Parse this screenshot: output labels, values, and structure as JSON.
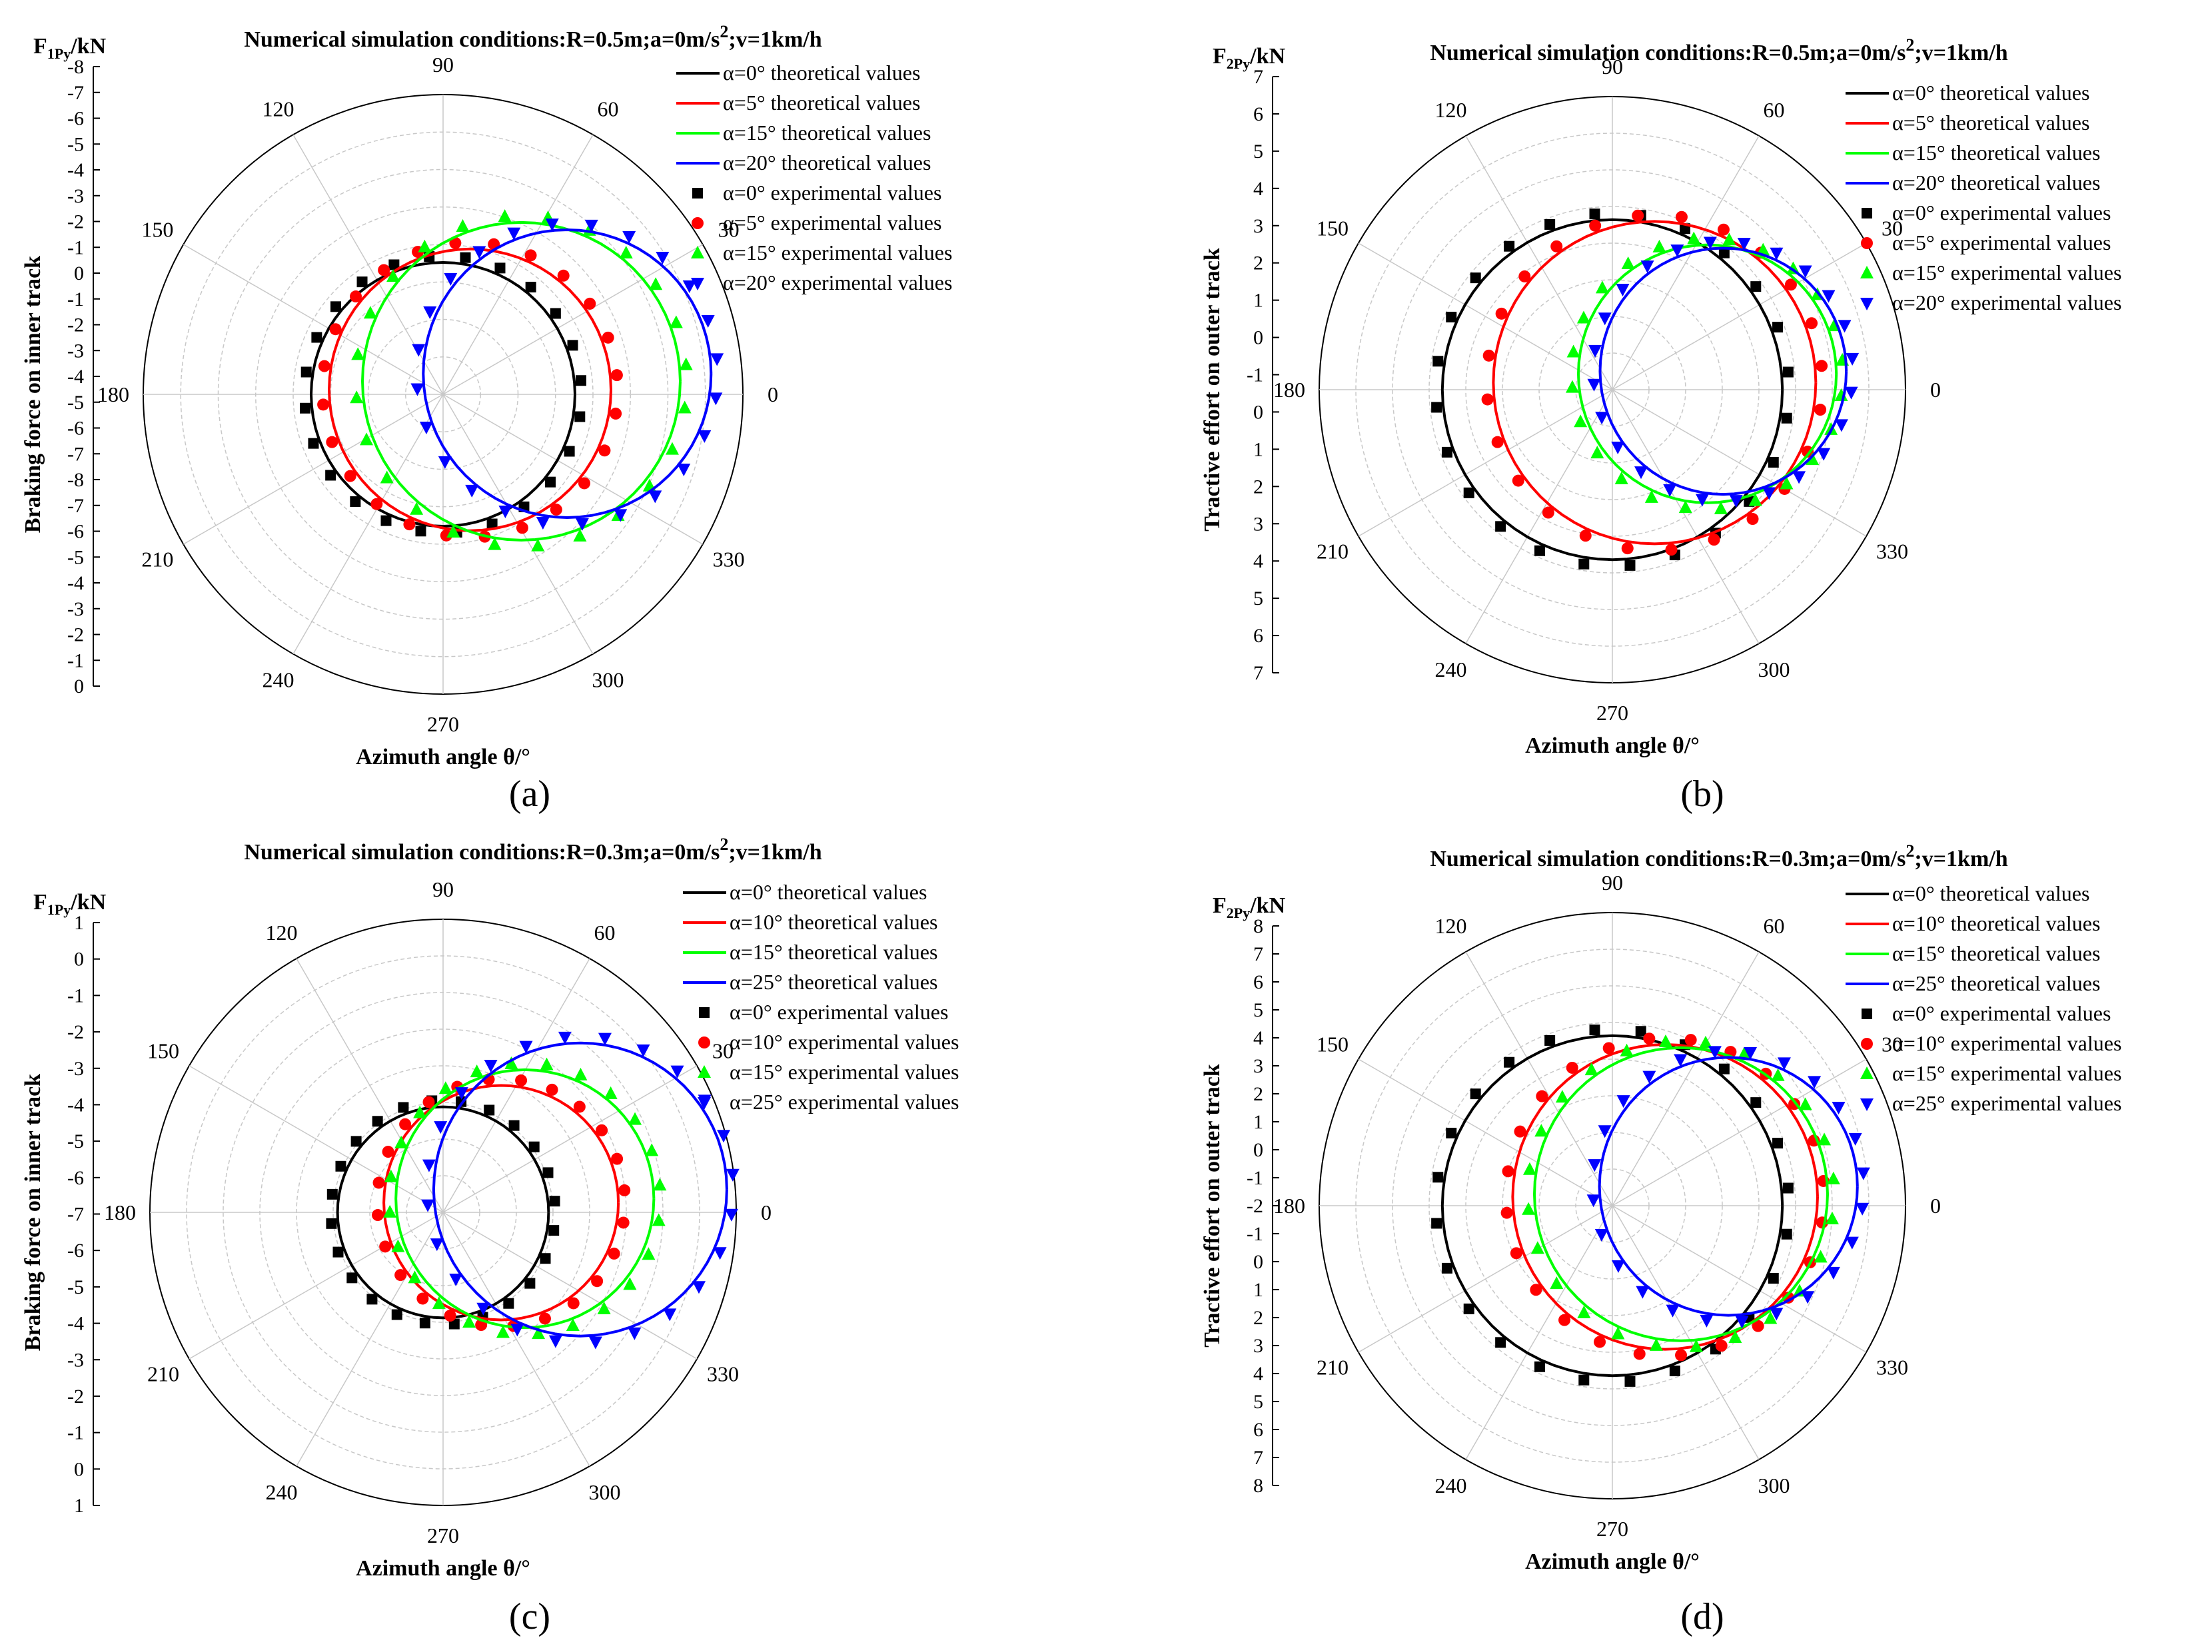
{
  "colors": {
    "black": "#000000",
    "red": "#ff0000",
    "green": "#00ff00",
    "blue": "#0000ff"
  },
  "chart_data": [
    {
      "type": "polar-line-scatter",
      "panel": "(a)",
      "title_main": "Numerical simulation conditions:R=0.5m;a=0m/s",
      "title_sup": "2",
      "title_tail": ";v=1km/h",
      "ylabel_main": "F",
      "ylabel_sub": "1Py",
      "ylabel_tail": "/kN",
      "radial_label": "Braking force on inner track",
      "xlabel": "Azimuth angle θ/°",
      "radial_ticks": [
        "-8",
        "-7",
        "-6",
        "-5",
        "-4",
        "-3",
        "-2",
        "-1",
        "0",
        "-1",
        "-2",
        "-3",
        "-4",
        "-5",
        "-6",
        "-7",
        "-8",
        "-7",
        "-6",
        "-5",
        "-4",
        "-3",
        "-2",
        "-1",
        "0"
      ],
      "angle_labels": [
        "0",
        "30",
        "60",
        "90",
        "120",
        "150",
        "180",
        "210",
        "240",
        "270",
        "300",
        "330"
      ],
      "legend": [
        {
          "label": "α=0°  theoretical values",
          "kind": "line",
          "color": "#000000"
        },
        {
          "label": "α=5°  theoretical values",
          "kind": "line",
          "color": "#ff0000"
        },
        {
          "label": "α=15° theoretical values",
          "kind": "line",
          "color": "#00ff00"
        },
        {
          "label": "α=20° theoretical values",
          "kind": "line",
          "color": "#0000ff"
        },
        {
          "label": "α=0°  experimental values",
          "kind": "square",
          "color": "#000000"
        },
        {
          "label": "α=5°  experimental values",
          "kind": "circle",
          "color": "#ff0000"
        },
        {
          "label": "α=15° experimental values",
          "kind": "up",
          "color": "#00ff00"
        },
        {
          "label": "α=20° experimental values",
          "kind": "down",
          "color": "#0000ff"
        }
      ],
      "series": [
        {
          "name": "α=0°",
          "color": "#000000",
          "marker": "square",
          "offset": 0.0,
          "radius": 0.44
        },
        {
          "name": "α=5°",
          "color": "#ff0000",
          "marker": "circle",
          "offset": 0.1,
          "radius": 0.47
        },
        {
          "name": "α=15°",
          "color": "#00ff00",
          "marker": "up",
          "offset": 0.29,
          "radius": 0.53
        },
        {
          "name": "α=20°",
          "color": "#0000ff",
          "marker": "down",
          "offset": 0.46,
          "radius": 0.48
        }
      ]
    },
    {
      "type": "polar-line-scatter",
      "panel": "(b)",
      "title_main": "Numerical simulation conditions:R=0.5m;a=0m/s",
      "title_sup": "2",
      "title_tail": ";v=1km/h",
      "ylabel_main": "F",
      "ylabel_sub": "2Py",
      "ylabel_tail": "/kN",
      "radial_label": "Tractive effort on outer track",
      "xlabel": "Azimuth angle θ/°",
      "radial_ticks": [
        "7",
        "6",
        "5",
        "4",
        "3",
        "2",
        "1",
        "0",
        "-1",
        "0",
        "1",
        "2",
        "3",
        "4",
        "5",
        "6",
        "7"
      ],
      "angle_labels": [
        "0",
        "30",
        "60",
        "90",
        "120",
        "150",
        "180",
        "210",
        "240",
        "270",
        "300",
        "330"
      ],
      "legend": [
        {
          "label": "α=0°  theoretical values",
          "kind": "line",
          "color": "#000000"
        },
        {
          "label": "α=5°  theoretical values",
          "kind": "line",
          "color": "#ff0000"
        },
        {
          "label": "α=15° theoretical values",
          "kind": "line",
          "color": "#00ff00"
        },
        {
          "label": "α=20° theoretical values",
          "kind": "line",
          "color": "#0000ff"
        },
        {
          "label": "α=0°  experimental values",
          "kind": "square",
          "color": "#000000"
        },
        {
          "label": "α=5°  experimental values",
          "kind": "circle",
          "color": "#ff0000"
        },
        {
          "label": "α=15° experimental values",
          "kind": "up",
          "color": "#00ff00"
        },
        {
          "label": "α=20° experimental values",
          "kind": "down",
          "color": "#0000ff"
        }
      ],
      "series": [
        {
          "name": "α=0°",
          "color": "#000000",
          "marker": "square",
          "offset": 0.0,
          "radius": 0.58
        },
        {
          "name": "α=5°",
          "color": "#ff0000",
          "marker": "circle",
          "offset": 0.16,
          "radius": 0.55
        },
        {
          "name": "α=15°",
          "color": "#00ff00",
          "marker": "up",
          "offset": 0.36,
          "radius": 0.44
        },
        {
          "name": "α=20°",
          "color": "#0000ff",
          "marker": "down",
          "offset": 0.42,
          "radius": 0.42
        }
      ]
    },
    {
      "type": "polar-line-scatter",
      "panel": "(c)",
      "title_main": "Numerical simulation conditions:R=0.3m;a=0m/s",
      "title_sup": "2",
      "title_tail": ";v=1km/h",
      "ylabel_main": "F",
      "ylabel_sub": "1Py",
      "ylabel_tail": "/kN",
      "radial_label": "Braking force on inner track",
      "xlabel": "Azimuth angle θ/°",
      "radial_ticks": [
        "1",
        "0",
        "-1",
        "-2",
        "-3",
        "-4",
        "-5",
        "-6",
        "-7",
        "-6",
        "-5",
        "-4",
        "-3",
        "-2",
        "-1",
        "0",
        "1"
      ],
      "angle_labels": [
        "0",
        "30",
        "60",
        "90",
        "120",
        "150",
        "180",
        "210",
        "240",
        "270",
        "300",
        "330"
      ],
      "legend": [
        {
          "label": "α=0°  theoretical values",
          "kind": "line",
          "color": "#000000"
        },
        {
          "label": "α=10° theoretical values",
          "kind": "line",
          "color": "#ff0000"
        },
        {
          "label": "α=15° theoretical values",
          "kind": "line",
          "color": "#00ff00"
        },
        {
          "label": "α=25° theoretical values",
          "kind": "line",
          "color": "#0000ff"
        },
        {
          "label": "α=0°  experimental values",
          "kind": "square",
          "color": "#000000"
        },
        {
          "label": "α=10° experimental values",
          "kind": "circle",
          "color": "#ff0000"
        },
        {
          "label": "α=15° experimental values",
          "kind": "up",
          "color": "#00ff00"
        },
        {
          "label": "α=25° experimental values",
          "kind": "down",
          "color": "#0000ff"
        }
      ],
      "series": [
        {
          "name": "α=0°",
          "color": "#000000",
          "marker": "square",
          "offset": 0.0,
          "radius": 0.36
        },
        {
          "name": "α=10°",
          "color": "#ff0000",
          "marker": "circle",
          "offset": 0.22,
          "radius": 0.4
        },
        {
          "name": "α=15°",
          "color": "#00ff00",
          "marker": "up",
          "offset": 0.31,
          "radius": 0.44
        },
        {
          "name": "α=25°",
          "color": "#0000ff",
          "marker": "down",
          "offset": 0.52,
          "radius": 0.5
        }
      ]
    },
    {
      "type": "polar-line-scatter",
      "panel": "(d)",
      "title_main": "Numerical simulation conditions:R=0.3m;a=0m/s",
      "title_sup": "2",
      "title_tail": ";v=1km/h",
      "ylabel_main": "F",
      "ylabel_sub": "2Py",
      "ylabel_tail": "/kN",
      "radial_label": "Tractive effort on outer track",
      "xlabel": "Azimuth angle θ/°",
      "radial_ticks": [
        "8",
        "7",
        "6",
        "5",
        "4",
        "3",
        "2",
        "1",
        "0",
        "-1",
        "-2",
        "-1",
        "0",
        "1",
        "2",
        "3",
        "4",
        "5",
        "6",
        "7",
        "8"
      ],
      "angle_labels": [
        "0",
        "30",
        "60",
        "90",
        "120",
        "150",
        "180",
        "210",
        "240",
        "270",
        "300",
        "330"
      ],
      "legend": [
        {
          "label": "α=0°  theoretical values",
          "kind": "line",
          "color": "#000000"
        },
        {
          "label": "α=10° theoretical values",
          "kind": "line",
          "color": "#ff0000"
        },
        {
          "label": "α=15° theoretical values",
          "kind": "line",
          "color": "#00ff00"
        },
        {
          "label": "α=25° theoretical values",
          "kind": "line",
          "color": "#0000ff"
        },
        {
          "label": "α=0°  experimental values",
          "kind": "square",
          "color": "#000000"
        },
        {
          "label": "α=10° experimental values",
          "kind": "circle",
          "color": "#ff0000"
        },
        {
          "label": "α=15° experimental values",
          "kind": "up",
          "color": "#00ff00"
        },
        {
          "label": "α=25° experimental values",
          "kind": "down",
          "color": "#0000ff"
        }
      ],
      "series": [
        {
          "name": "α=0°",
          "color": "#000000",
          "marker": "square",
          "offset": 0.0,
          "radius": 0.58
        },
        {
          "name": "α=10°",
          "color": "#ff0000",
          "marker": "circle",
          "offset": 0.2,
          "radius": 0.52
        },
        {
          "name": "α=15°",
          "color": "#00ff00",
          "marker": "up",
          "offset": 0.26,
          "radius": 0.5
        },
        {
          "name": "α=25°",
          "color": "#0000ff",
          "marker": "down",
          "offset": 0.44,
          "radius": 0.44
        }
      ]
    }
  ]
}
